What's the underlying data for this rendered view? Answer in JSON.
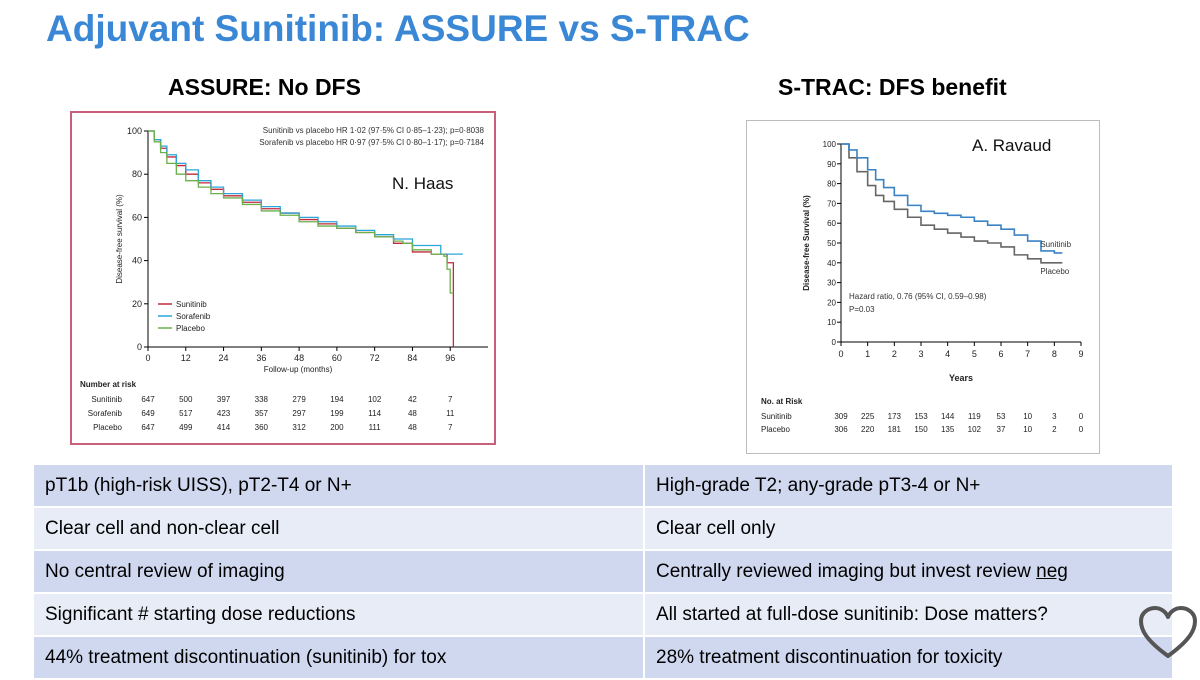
{
  "slide": {
    "title": "Adjuvant Sunitinib: ASSURE vs S-TRAC",
    "left_heading": "ASSURE: No DFS",
    "right_heading": "S-TRAC: DFS benefit"
  },
  "colors": {
    "title": "#3a87d6",
    "row_dark": "#cfd8ef",
    "row_light": "#e8ecf7",
    "assure_border": "#c8607c"
  },
  "chart_data": [
    {
      "type": "line",
      "name": "ASSURE",
      "annotation": "N. Haas",
      "ylabel": "Disease-free survival (%)",
      "xlabel": "Follow-up (months)",
      "xlim": [
        0,
        108
      ],
      "ylim": [
        0,
        100
      ],
      "xticks": [
        0,
        12,
        24,
        36,
        48,
        60,
        72,
        84,
        96
      ],
      "yticks": [
        0,
        20,
        40,
        60,
        80,
        100
      ],
      "hr_text": [
        "Sunitinib vs placebo HR 1·02 (97·5% CI 0·85–1·23); p=0·8038",
        "Sorafenib vs placebo HR 0·97 (97·5% CI 0·80–1·17); p=0·7184"
      ],
      "legend_position": "bottom-left",
      "series": [
        {
          "name": "Sunitinib",
          "color": "#c4283c",
          "points": [
            [
              0,
              100
            ],
            [
              2,
              96
            ],
            [
              4,
              92
            ],
            [
              6,
              88
            ],
            [
              9,
              84
            ],
            [
              12,
              80
            ],
            [
              16,
              76
            ],
            [
              20,
              73
            ],
            [
              24,
              70
            ],
            [
              30,
              67
            ],
            [
              36,
              64
            ],
            [
              42,
              62
            ],
            [
              48,
              59
            ],
            [
              54,
              57
            ],
            [
              60,
              55
            ],
            [
              66,
              53
            ],
            [
              72,
              51
            ],
            [
              78,
              48
            ],
            [
              84,
              44
            ],
            [
              90,
              43
            ],
            [
              94,
              43
            ],
            [
              95,
              39
            ],
            [
              96,
              39
            ],
            [
              97,
              0
            ]
          ]
        },
        {
          "name": "Sorafenib",
          "color": "#2aa5d8",
          "points": [
            [
              0,
              100
            ],
            [
              2,
              96
            ],
            [
              4,
              93
            ],
            [
              6,
              89
            ],
            [
              9,
              85
            ],
            [
              12,
              82
            ],
            [
              16,
              77
            ],
            [
              20,
              74
            ],
            [
              24,
              71
            ],
            [
              30,
              68
            ],
            [
              36,
              65
            ],
            [
              42,
              62
            ],
            [
              48,
              60
            ],
            [
              54,
              58
            ],
            [
              60,
              56
            ],
            [
              66,
              54
            ],
            [
              72,
              52
            ],
            [
              78,
              50
            ],
            [
              84,
              47
            ],
            [
              90,
              47
            ],
            [
              93,
              47
            ],
            [
              93,
              43
            ],
            [
              100,
              43
            ]
          ]
        },
        {
          "name": "Placebo",
          "color": "#6ab04c",
          "points": [
            [
              0,
              100
            ],
            [
              2,
              95
            ],
            [
              4,
              90
            ],
            [
              6,
              85
            ],
            [
              9,
              80
            ],
            [
              12,
              77
            ],
            [
              16,
              74
            ],
            [
              20,
              71
            ],
            [
              24,
              69
            ],
            [
              30,
              66
            ],
            [
              36,
              63
            ],
            [
              42,
              61
            ],
            [
              48,
              58
            ],
            [
              54,
              56
            ],
            [
              60,
              55
            ],
            [
              66,
              53
            ],
            [
              72,
              51
            ],
            [
              78,
              49
            ],
            [
              81,
              48
            ],
            [
              84,
              45
            ],
            [
              90,
              43
            ],
            [
              94,
              42
            ],
            [
              95,
              36
            ],
            [
              96,
              25
            ],
            [
              97,
              25
            ]
          ]
        }
      ],
      "risk_table": {
        "heading": "Number at risk",
        "times": [
          0,
          12,
          24,
          36,
          48,
          60,
          72,
          84,
          96
        ],
        "rows": [
          {
            "label": "Sunitinib",
            "values": [
              "647",
              "500",
              "397",
              "338",
              "279",
              "194",
              "102",
              "42",
              "7"
            ]
          },
          {
            "label": "Sorafenib",
            "values": [
              "649",
              "517",
              "423",
              "357",
              "297",
              "199",
              "114",
              "48",
              "11"
            ]
          },
          {
            "label": "Placebo",
            "values": [
              "647",
              "499",
              "414",
              "360",
              "312",
              "200",
              "111",
              "48",
              "7"
            ]
          }
        ]
      }
    },
    {
      "type": "line",
      "name": "S-TRAC",
      "annotation": "A. Ravaud",
      "ylabel": "Disease-free Survival (%)",
      "xlabel": "Years",
      "xlim": [
        0,
        9
      ],
      "ylim": [
        0,
        100
      ],
      "xticks": [
        0,
        1,
        2,
        3,
        4,
        5,
        6,
        7,
        8,
        9
      ],
      "yticks": [
        0,
        10,
        20,
        30,
        40,
        50,
        60,
        70,
        80,
        90,
        100
      ],
      "hr_text": [
        "Hazard ratio, 0.76 (95% CI, 0.59–0.98)",
        "P=0.03"
      ],
      "series": [
        {
          "name": "Sunitinib",
          "color": "#3b82c4",
          "points": [
            [
              0,
              100
            ],
            [
              0.3,
              97
            ],
            [
              0.6,
              93
            ],
            [
              1,
              87
            ],
            [
              1.3,
              82
            ],
            [
              1.6,
              78
            ],
            [
              2,
              74
            ],
            [
              2.5,
              69
            ],
            [
              3,
              66
            ],
            [
              3.5,
              65
            ],
            [
              4,
              64
            ],
            [
              4.5,
              63
            ],
            [
              5,
              61
            ],
            [
              5.5,
              59
            ],
            [
              6,
              57
            ],
            [
              6.5,
              54
            ],
            [
              7,
              51
            ],
            [
              7.5,
              46
            ],
            [
              8,
              45
            ],
            [
              8.3,
              45
            ]
          ]
        },
        {
          "name": "Placebo",
          "color": "#666666",
          "points": [
            [
              0,
              100
            ],
            [
              0.3,
              93
            ],
            [
              0.6,
              86
            ],
            [
              1,
              79
            ],
            [
              1.3,
              74
            ],
            [
              1.6,
              71
            ],
            [
              2,
              67
            ],
            [
              2.5,
              63
            ],
            [
              3,
              59
            ],
            [
              3.5,
              57
            ],
            [
              4,
              55
            ],
            [
              4.5,
              53
            ],
            [
              5,
              51
            ],
            [
              5.5,
              50
            ],
            [
              6,
              48
            ],
            [
              6.5,
              44
            ],
            [
              7,
              42
            ],
            [
              7.5,
              40
            ],
            [
              8,
              40
            ],
            [
              8.3,
              40
            ]
          ]
        }
      ],
      "risk_table": {
        "heading": "No. at Risk",
        "times": [
          0,
          1,
          2,
          3,
          4,
          5,
          6,
          7,
          8,
          9
        ],
        "rows": [
          {
            "label": "Sunitinib",
            "values": [
              "309",
              "225",
              "173",
              "153",
              "144",
              "119",
              "53",
              "10",
              "3",
              "0"
            ]
          },
          {
            "label": "Placebo",
            "values": [
              "306",
              "220",
              "181",
              "150",
              "135",
              "102",
              "37",
              "10",
              "2",
              "0"
            ]
          }
        ]
      }
    }
  ],
  "comparison": [
    {
      "left": "pT1b (high-risk UISS), pT2-T4 or N+",
      "right": "High-grade T2; any-grade pT3-4 or N+"
    },
    {
      "left": "Clear cell and non-clear cell",
      "right": "Clear cell only"
    },
    {
      "left": "No central review of imaging",
      "right_prefix": "Centrally reviewed imaging but invest review ",
      "right_underlined": "neg"
    },
    {
      "left": "Significant # starting dose reductions",
      "right": "All started at full-dose sunitinib: Dose matters?"
    },
    {
      "left": "44% treatment discontinuation (sunitinib) for tox",
      "right": "28% treatment discontinuation for toxicity"
    }
  ],
  "icons": {
    "heart": "heart-outline-icon"
  }
}
